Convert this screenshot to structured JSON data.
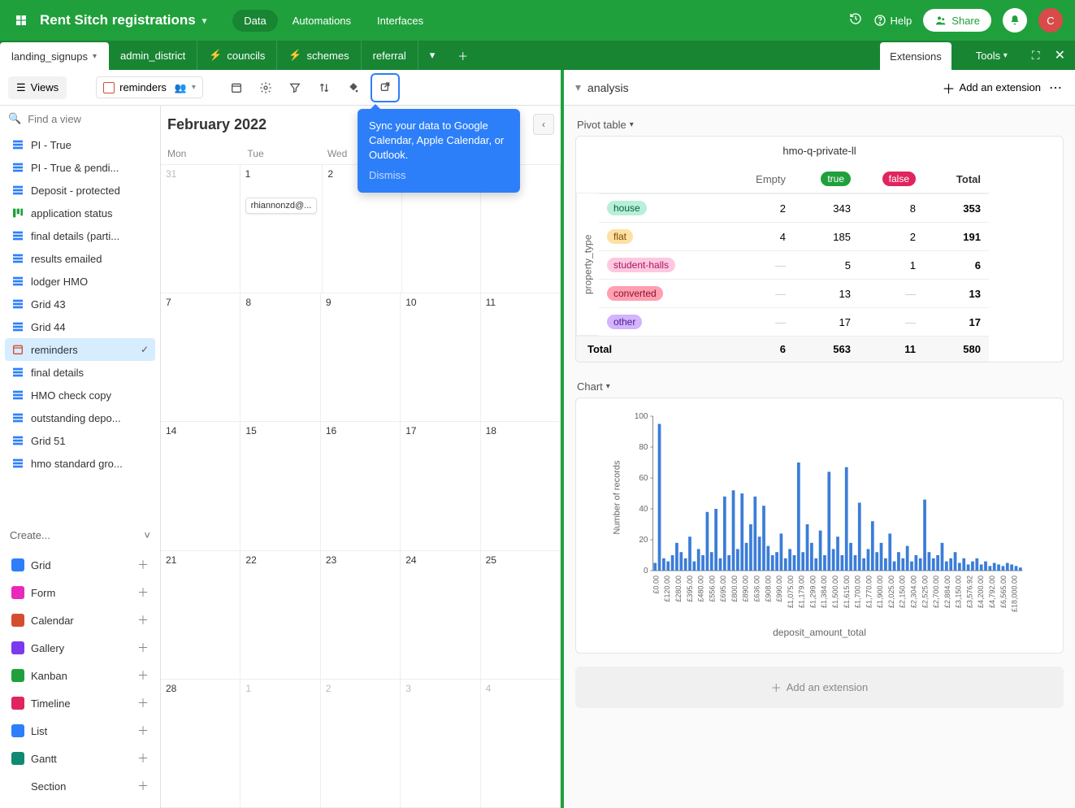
{
  "topbar": {
    "base_name": "Rent Sitch registrations",
    "tabs": [
      "Data",
      "Automations",
      "Interfaces"
    ],
    "active_tab": 0,
    "help_label": "Help",
    "share_label": "Share",
    "avatar_initial": "C"
  },
  "tables": {
    "items": [
      "landing_signups",
      "admin_district",
      "councils",
      "schemes",
      "referral"
    ],
    "active": 0
  },
  "extbar": {
    "extensions_label": "Extensions",
    "tools_label": "Tools"
  },
  "toolbar": {
    "views_label": "Views",
    "current_view": "reminders"
  },
  "sidebar": {
    "find_placeholder": "Find a view",
    "views": [
      {
        "icon": "grid",
        "label": "PI - True"
      },
      {
        "icon": "grid",
        "label": "PI - True & pendi..."
      },
      {
        "icon": "grid",
        "label": "Deposit - protected"
      },
      {
        "icon": "kanban",
        "label": "application status"
      },
      {
        "icon": "grid",
        "label": "final details (parti..."
      },
      {
        "icon": "grid",
        "label": "results emailed"
      },
      {
        "icon": "grid",
        "label": "lodger HMO"
      },
      {
        "icon": "grid",
        "label": "Grid 43"
      },
      {
        "icon": "grid",
        "label": "Grid 44"
      },
      {
        "icon": "cal",
        "label": "reminders",
        "active": true
      },
      {
        "icon": "grid",
        "label": "final details"
      },
      {
        "icon": "grid",
        "label": "HMO check copy"
      },
      {
        "icon": "grid",
        "label": "outstanding depo..."
      },
      {
        "icon": "grid",
        "label": "Grid 51"
      },
      {
        "icon": "grid",
        "label": "hmo standard gro..."
      }
    ],
    "create_label": "Create...",
    "create_items": [
      {
        "label": "Grid",
        "color": "#2d7ff9"
      },
      {
        "label": "Form",
        "color": "#e929ba"
      },
      {
        "label": "Calendar",
        "color": "#d54d2f"
      },
      {
        "label": "Gallery",
        "color": "#7c39ed"
      },
      {
        "label": "Kanban",
        "color": "#20a03c"
      },
      {
        "label": "Timeline",
        "color": "#e0245e"
      },
      {
        "label": "List",
        "color": "#2d7ff9"
      },
      {
        "label": "Gantt",
        "color": "#0f8a72"
      },
      {
        "label": "Section",
        "color": "transparent"
      }
    ]
  },
  "calendar": {
    "title": "February 2022",
    "dow": [
      "Mon",
      "Tue",
      "Wed",
      "Thu",
      "Fri"
    ],
    "weeks": [
      [
        {
          "n": "31",
          "other": true
        },
        {
          "n": "1",
          "event": "rhiannonzd@..."
        },
        {
          "n": "2"
        },
        {
          "n": "3"
        },
        {
          "n": "4"
        }
      ],
      [
        {
          "n": "7"
        },
        {
          "n": "8"
        },
        {
          "n": "9"
        },
        {
          "n": "10"
        },
        {
          "n": "11"
        }
      ],
      [
        {
          "n": "14"
        },
        {
          "n": "15"
        },
        {
          "n": "16"
        },
        {
          "n": "17"
        },
        {
          "n": "18"
        }
      ],
      [
        {
          "n": "21"
        },
        {
          "n": "22"
        },
        {
          "n": "23"
        },
        {
          "n": "24"
        },
        {
          "n": "25"
        }
      ],
      [
        {
          "n": "28"
        },
        {
          "n": "1",
          "other": true
        },
        {
          "n": "2",
          "other": true
        },
        {
          "n": "3",
          "other": true
        },
        {
          "n": "4",
          "other": true
        }
      ]
    ]
  },
  "tooltip": {
    "text": "Sync your data to Google Calendar, Apple Calendar, or Outlook.",
    "dismiss": "Dismiss"
  },
  "ext_panel": {
    "title": "analysis",
    "add_label": "Add an extension"
  },
  "pivot": {
    "label": "Pivot table",
    "title": "hmo-q-private-ll",
    "row_dim": "property_type",
    "cols": [
      "Empty",
      "true",
      "false",
      "Total"
    ],
    "rows": [
      {
        "tag": "house",
        "cls": "house",
        "vals": [
          "2",
          "343",
          "8",
          "353"
        ]
      },
      {
        "tag": "flat",
        "cls": "flat",
        "vals": [
          "4",
          "185",
          "2",
          "191"
        ]
      },
      {
        "tag": "student-halls",
        "cls": "student",
        "vals": [
          "—",
          "5",
          "1",
          "6"
        ]
      },
      {
        "tag": "converted",
        "cls": "converted",
        "vals": [
          "—",
          "13",
          "—",
          "13"
        ]
      },
      {
        "tag": "other",
        "cls": "other",
        "vals": [
          "—",
          "17",
          "—",
          "17"
        ]
      }
    ],
    "total": {
      "label": "Total",
      "vals": [
        "6",
        "563",
        "11",
        "580"
      ]
    }
  },
  "chart": {
    "label": "Chart",
    "ylabel": "Number of records",
    "xlabel": "deposit_amount_total",
    "ylim": [
      0,
      100
    ],
    "yticks": [
      0,
      20,
      40,
      60,
      80,
      100
    ],
    "xlabels": [
      "£0.00",
      "£120.00",
      "£280.00",
      "£395.00",
      "£480.00",
      "£556.00",
      "£695.00",
      "£800.00",
      "£890.00",
      "£636.00",
      "£908.00",
      "£990.00",
      "£1,075.00",
      "£1,179.00",
      "£1,299.00",
      "£1,384.00",
      "£1,500.00",
      "£1,615.00",
      "£1,700.00",
      "£1,770.00",
      "£1,900.00",
      "£2,025.00",
      "£2,150.00",
      "£2,304.00",
      "£2,525.00",
      "£2,700.00",
      "£2,884.00",
      "£3,150.00",
      "£3,576.92",
      "£4,200.00",
      "£4,792.00",
      "£6,565.00",
      "£18,000.00"
    ],
    "bars": [
      5,
      95,
      8,
      6,
      10,
      18,
      12,
      8,
      22,
      6,
      14,
      10,
      38,
      12,
      40,
      8,
      48,
      10,
      52,
      14,
      50,
      18,
      30,
      48,
      22,
      42,
      16,
      10,
      12,
      24,
      8,
      14,
      10,
      70,
      12,
      30,
      18,
      8,
      26,
      10,
      64,
      14,
      22,
      10,
      67,
      18,
      10,
      44,
      8,
      14,
      32,
      12,
      18,
      8,
      24,
      6,
      12,
      8,
      16,
      6,
      10,
      8,
      46,
      12,
      8,
      10,
      18,
      6,
      8,
      12,
      5,
      8,
      4,
      6,
      8,
      4,
      6,
      3,
      5,
      4,
      3,
      5,
      4,
      3,
      2
    ],
    "bar_color": "#3b7dd8",
    "bg": "#ffffff"
  },
  "footer_add": "Add an extension"
}
